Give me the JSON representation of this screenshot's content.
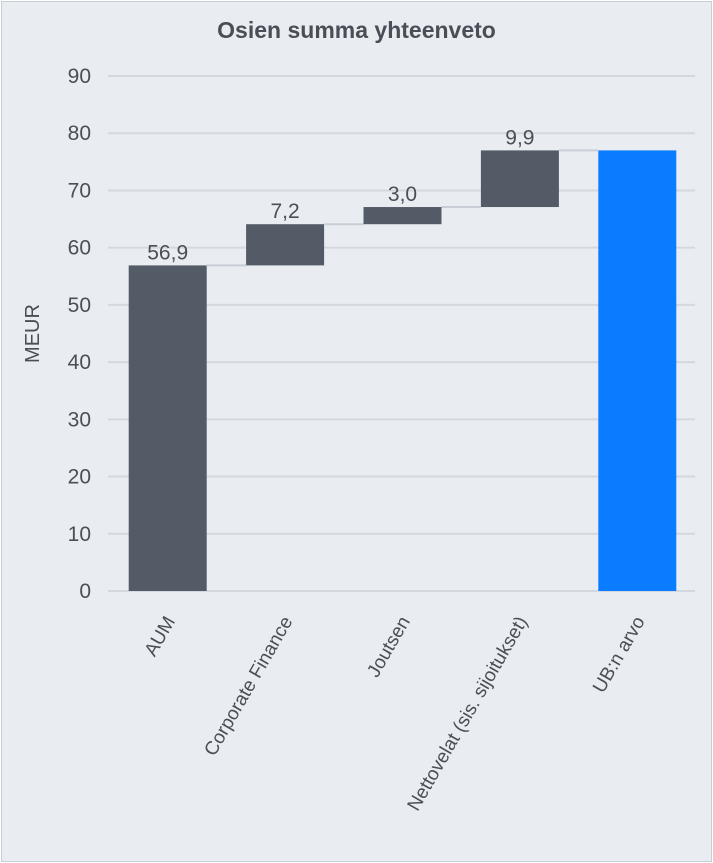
{
  "chart_data": {
    "type": "bar",
    "subtype": "waterfall",
    "title": "Osien summa yhteenveto",
    "ylabel": "MEUR",
    "xlabel": "",
    "ylim": [
      0,
      90
    ],
    "yticks": [
      0,
      10,
      20,
      30,
      40,
      50,
      60,
      70,
      80,
      90
    ],
    "grid": true,
    "categories": [
      "AUM",
      "Corporate Finance",
      "Joutsen",
      "Nettovelat (sis. sijoitukset)",
      "UB:n arvo"
    ],
    "values": [
      56.9,
      7.2,
      3.0,
      9.9,
      77.0
    ],
    "bases": [
      0,
      56.9,
      64.1,
      67.1,
      0
    ],
    "data_labels": [
      "56,9",
      "7,2",
      "3,0",
      "9,9",
      ""
    ],
    "colors": [
      "#525b66",
      "#525b66",
      "#525b66",
      "#525b66",
      "#0a7cff"
    ]
  }
}
